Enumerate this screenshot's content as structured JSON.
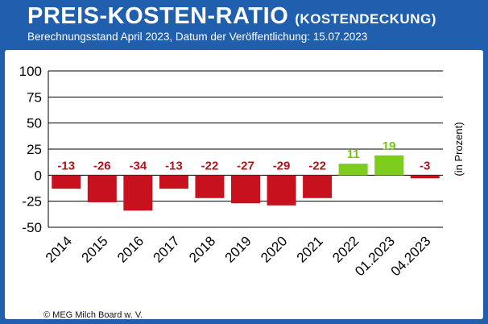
{
  "header": {
    "title": "PREIS-KOSTEN-RATIO",
    "title_suffix": "(KOSTENDECKUNG)",
    "subtitle": "Berechnungsstand April 2023, Datum der Veröffentlichung: 15.07.2023"
  },
  "footer": {
    "source": "© MEG Milch Board w. V."
  },
  "colors": {
    "frame": "#1f5fae",
    "negative_bar": "#c8111f",
    "positive_bar": "#7dcc1e",
    "negative_label": "#b5121b",
    "positive_label": "#74c21a"
  },
  "chart_data": {
    "type": "bar",
    "title": "PREIS-KOSTEN-RATIO (KOSTENDECKUNG)",
    "ylabel": "(in Prozent)",
    "xlabel": "",
    "ylim": [
      -50,
      100
    ],
    "yticks": [
      -50,
      -25,
      0,
      25,
      50,
      75,
      100
    ],
    "categories": [
      "2014",
      "2015",
      "2016",
      "2017",
      "2018",
      "2019",
      "2020",
      "2021",
      "2022",
      "01.2023",
      "04.2023"
    ],
    "values": [
      -13,
      -26,
      -34,
      -13,
      -22,
      -27,
      -29,
      -22,
      11,
      19,
      -3
    ],
    "data_labels": [
      "-13",
      "-26",
      "-34",
      "-13",
      "-22",
      "-27",
      "-29",
      "-22",
      "11",
      "19",
      "-3"
    ],
    "grid": true
  }
}
